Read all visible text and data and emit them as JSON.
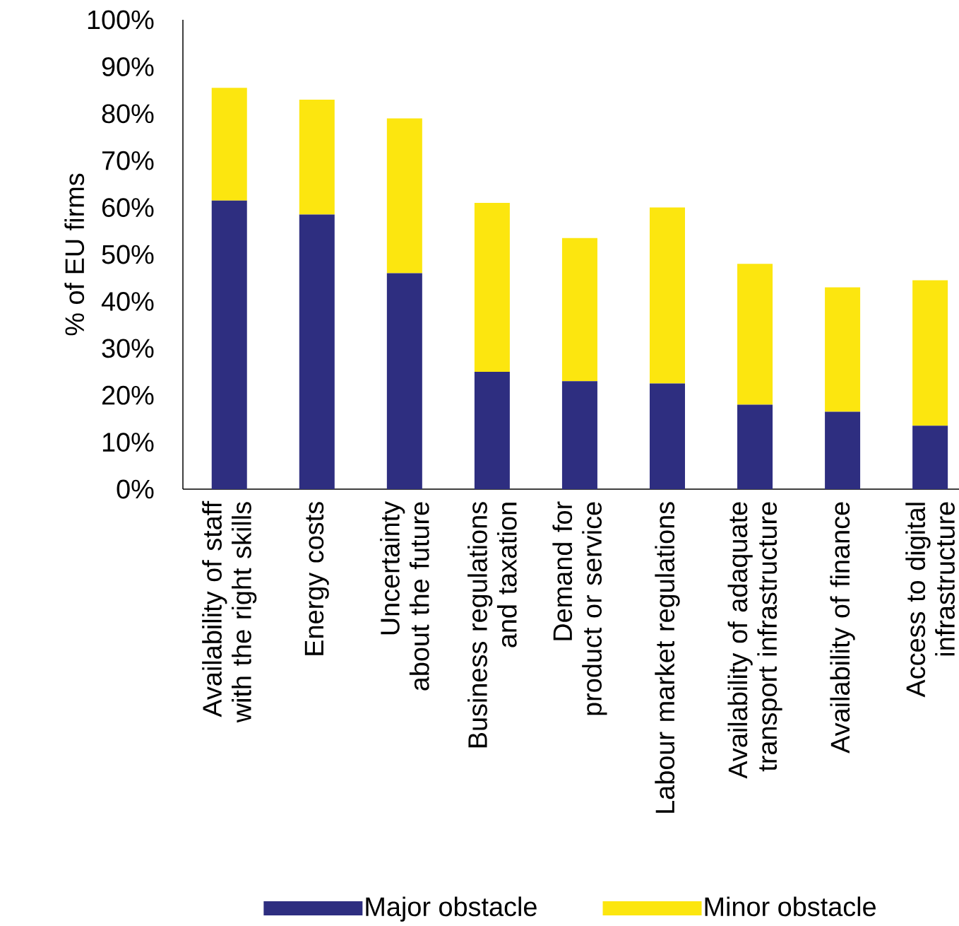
{
  "chart_data": {
    "type": "bar",
    "stacked": true,
    "ylabel": "% of EU firms",
    "categories": [
      "Availability of staff with the right skills",
      "Energy costs",
      "Uncertainty about the future",
      "Business regulations and taxation",
      "Demand for product or service",
      "Labour market regulations",
      "Availability of adaquate transport infrastructure",
      "Availability of finance",
      "Access to digital infrastructure"
    ],
    "series": [
      {
        "name": "Major obstacle",
        "color": "#2e2e80",
        "values": [
          61.5,
          58.5,
          46,
          25,
          23,
          22.5,
          18,
          16.5,
          13.5
        ]
      },
      {
        "name": "Minor obstacle",
        "color": "#fce60f",
        "values": [
          24,
          24.5,
          33,
          36,
          30.5,
          37.5,
          30,
          26.5,
          31
        ]
      }
    ],
    "ylim": [
      0,
      100
    ],
    "yticks": [
      {
        "value": 0,
        "label": "0%"
      },
      {
        "value": 10,
        "label": "10%"
      },
      {
        "value": 20,
        "label": "20%"
      },
      {
        "value": 30,
        "label": "30%"
      },
      {
        "value": 40,
        "label": "40%"
      },
      {
        "value": 50,
        "label": "50%"
      },
      {
        "value": 60,
        "label": "60%"
      },
      {
        "value": 70,
        "label": "70%"
      },
      {
        "value": 80,
        "label": "80%"
      },
      {
        "value": 90,
        "label": "90%"
      },
      {
        "value": 100,
        "label": "100%"
      }
    ],
    "grid": false,
    "legend": "bottom"
  }
}
